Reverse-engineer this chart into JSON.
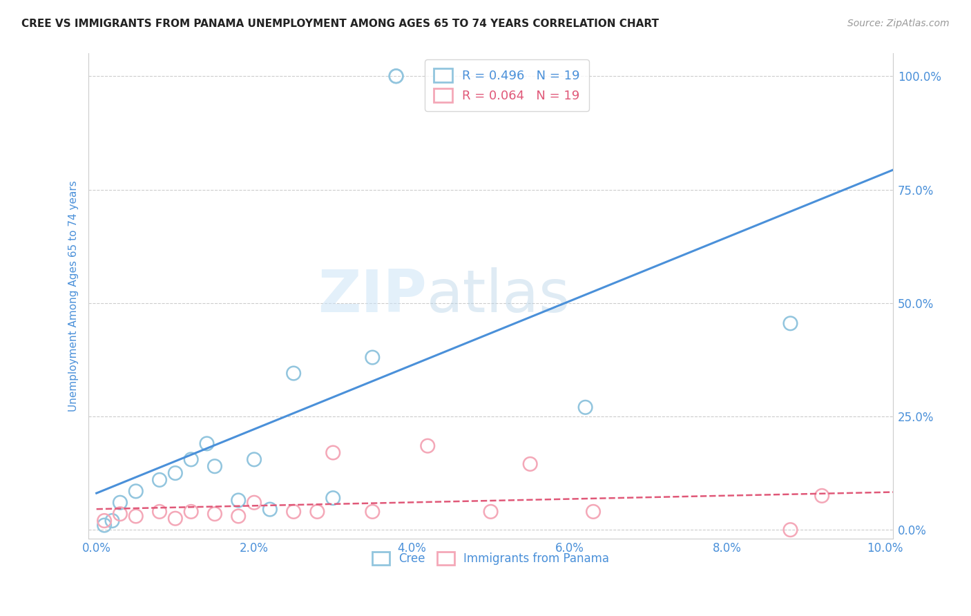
{
  "title": "CREE VS IMMIGRANTS FROM PANAMA UNEMPLOYMENT AMONG AGES 65 TO 74 YEARS CORRELATION CHART",
  "source": "Source: ZipAtlas.com",
  "ylabel": "Unemployment Among Ages 65 to 74 years",
  "xlim": [
    -0.001,
    0.101
  ],
  "ylim": [
    -0.02,
    1.05
  ],
  "xticks": [
    0.0,
    0.02,
    0.04,
    0.06,
    0.08,
    0.1
  ],
  "xtick_labels": [
    "0.0%",
    "2.0%",
    "4.0%",
    "6.0%",
    "8.0%",
    "10.0%"
  ],
  "yticks": [
    0.0,
    0.25,
    0.5,
    0.75,
    1.0
  ],
  "ytick_labels": [
    "0.0%",
    "25.0%",
    "50.0%",
    "75.0%",
    "100.0%"
  ],
  "cree_color": "#92c5de",
  "panama_color": "#f4a8b8",
  "cree_line_color": "#4a90d9",
  "panama_line_color": "#e05878",
  "legend_R_cree": "R = 0.496",
  "legend_N_cree": "N = 19",
  "legend_R_panama": "R = 0.064",
  "legend_N_panama": "N = 19",
  "watermark_zip": "ZIP",
  "watermark_atlas": "atlas",
  "cree_x": [
    0.001,
    0.002,
    0.003,
    0.005,
    0.008,
    0.01,
    0.012,
    0.014,
    0.015,
    0.018,
    0.02,
    0.022,
    0.025,
    0.03,
    0.035,
    0.038,
    0.038,
    0.062,
    0.088
  ],
  "cree_y": [
    0.01,
    0.02,
    0.06,
    0.085,
    0.11,
    0.125,
    0.155,
    0.19,
    0.14,
    0.065,
    0.155,
    0.045,
    0.345,
    0.07,
    0.38,
    1.0,
    1.0,
    0.27,
    0.455
  ],
  "panama_x": [
    0.001,
    0.003,
    0.005,
    0.008,
    0.01,
    0.012,
    0.015,
    0.018,
    0.02,
    0.025,
    0.028,
    0.03,
    0.035,
    0.042,
    0.05,
    0.055,
    0.063,
    0.088,
    0.092
  ],
  "panama_y": [
    0.02,
    0.035,
    0.03,
    0.04,
    0.025,
    0.04,
    0.035,
    0.03,
    0.06,
    0.04,
    0.04,
    0.17,
    0.04,
    0.185,
    0.04,
    0.145,
    0.04,
    0.0,
    0.075
  ],
  "background_color": "#ffffff",
  "title_color": "#222222",
  "axis_label_color": "#4a90d9",
  "tick_color": "#4a90d9",
  "grid_color": "#cccccc",
  "grid_linestyle": "--"
}
